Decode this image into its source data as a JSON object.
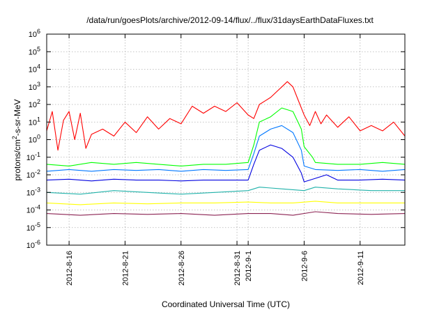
{
  "chart_data": {
    "type": "line",
    "title": "/data/run/goesPlots/archive/2012-09-14/flux/../flux/31daysEarthDataFluxes.txt",
    "xlabel": "Coordinated Universal Time (UTC)",
    "ylabel": {
      "prefix": "protons/cm",
      "superscript": "2",
      "suffix": "-s-sr-MeV"
    },
    "y_scale": "log",
    "ylim_exp": [
      -6,
      6
    ],
    "y_ticks": [
      {
        "base": "10",
        "exp": "-6"
      },
      {
        "base": "10",
        "exp": "-5"
      },
      {
        "base": "10",
        "exp": "-4"
      },
      {
        "base": "10",
        "exp": "-3"
      },
      {
        "base": "10",
        "exp": "-2"
      },
      {
        "base": "10",
        "exp": "-1"
      },
      {
        "base": "10",
        "exp": "0"
      },
      {
        "base": "10",
        "exp": "1"
      },
      {
        "base": "10",
        "exp": "2"
      },
      {
        "base": "10",
        "exp": "3"
      },
      {
        "base": "10",
        "exp": "4"
      },
      {
        "base": "10",
        "exp": "5"
      },
      {
        "base": "10",
        "exp": "6"
      }
    ],
    "xlim": [
      "2012-08-14",
      "2012-09-15"
    ],
    "x_ticks": [
      "2012-8-16",
      "2012-8-21",
      "2012-8-26",
      "2012-8-31",
      "2012-9-1",
      "2012-9-6",
      "2012-9-11"
    ],
    "grid": true,
    "series": [
      {
        "color": "#8b2252",
        "points": [
          [
            "2012-08-14",
            -4.2
          ],
          [
            "2012-08-17",
            -4.3
          ],
          [
            "2012-08-20",
            -4.2
          ],
          [
            "2012-08-23",
            -4.25
          ],
          [
            "2012-08-26",
            -4.2
          ],
          [
            "2012-08-29",
            -4.3
          ],
          [
            "2012-09-01",
            -4.2
          ],
          [
            "2012-09-03",
            -4.2
          ],
          [
            "2012-09-05",
            -4.3
          ],
          [
            "2012-09-07",
            -4.1
          ],
          [
            "2012-09-09",
            -4.2
          ],
          [
            "2012-09-12",
            -4.25
          ],
          [
            "2012-09-15",
            -4.2
          ]
        ]
      },
      {
        "color": "#ffff00",
        "points": [
          [
            "2012-08-14",
            -3.6
          ],
          [
            "2012-08-17",
            -3.7
          ],
          [
            "2012-08-20",
            -3.6
          ],
          [
            "2012-08-23",
            -3.65
          ],
          [
            "2012-08-26",
            -3.6
          ],
          [
            "2012-08-29",
            -3.6
          ],
          [
            "2012-09-01",
            -3.55
          ],
          [
            "2012-09-03",
            -3.6
          ],
          [
            "2012-09-05",
            -3.6
          ],
          [
            "2012-09-07",
            -3.5
          ],
          [
            "2012-09-09",
            -3.6
          ],
          [
            "2012-09-12",
            -3.6
          ],
          [
            "2012-09-15",
            -3.6
          ]
        ]
      },
      {
        "color": "#20b2aa",
        "points": [
          [
            "2012-08-14",
            -3.0
          ],
          [
            "2012-08-17",
            -3.1
          ],
          [
            "2012-08-20",
            -2.9
          ],
          [
            "2012-08-23",
            -3.0
          ],
          [
            "2012-08-26",
            -3.1
          ],
          [
            "2012-08-29",
            -3.0
          ],
          [
            "2012-09-01",
            -2.9
          ],
          [
            "2012-09-02",
            -2.7
          ],
          [
            "2012-09-04",
            -2.8
          ],
          [
            "2012-09-06",
            -2.9
          ],
          [
            "2012-09-07",
            -2.7
          ],
          [
            "2012-09-09",
            -2.8
          ],
          [
            "2012-09-12",
            -2.9
          ],
          [
            "2012-09-15",
            -2.9
          ]
        ]
      },
      {
        "color": "#00ff00",
        "points": [
          [
            "2012-08-14",
            -1.4
          ],
          [
            "2012-08-16",
            -1.5
          ],
          [
            "2012-08-18",
            -1.3
          ],
          [
            "2012-08-20",
            -1.4
          ],
          [
            "2012-08-22",
            -1.3
          ],
          [
            "2012-08-24",
            -1.4
          ],
          [
            "2012-08-26",
            -1.5
          ],
          [
            "2012-08-28",
            -1.4
          ],
          [
            "2012-08-30",
            -1.4
          ],
          [
            "2012-09-01",
            -1.3
          ],
          [
            "2012-09-01T12:00",
            -0.3
          ],
          [
            "2012-09-02",
            1.0
          ],
          [
            "2012-09-03",
            1.3
          ],
          [
            "2012-09-04",
            1.8
          ],
          [
            "2012-09-05",
            1.6
          ],
          [
            "2012-09-05T18:00",
            0.6
          ],
          [
            "2012-09-06",
            -0.4
          ],
          [
            "2012-09-06T18:00",
            -1.0
          ],
          [
            "2012-09-07",
            -1.3
          ],
          [
            "2012-09-09",
            -1.4
          ],
          [
            "2012-09-11",
            -1.4
          ],
          [
            "2012-09-13",
            -1.3
          ],
          [
            "2012-09-15",
            -1.4
          ]
        ]
      },
      {
        "color": "#0077ff",
        "points": [
          [
            "2012-08-14",
            -1.8
          ],
          [
            "2012-08-16",
            -1.7
          ],
          [
            "2012-08-18",
            -1.8
          ],
          [
            "2012-08-20",
            -1.7
          ],
          [
            "2012-08-22",
            -1.75
          ],
          [
            "2012-08-24",
            -1.7
          ],
          [
            "2012-08-26",
            -1.8
          ],
          [
            "2012-08-28",
            -1.7
          ],
          [
            "2012-08-30",
            -1.75
          ],
          [
            "2012-09-01",
            -1.7
          ],
          [
            "2012-09-01T12:00",
            -0.8
          ],
          [
            "2012-09-02",
            0.2
          ],
          [
            "2012-09-03",
            0.6
          ],
          [
            "2012-09-04",
            0.8
          ],
          [
            "2012-09-05",
            0.4
          ],
          [
            "2012-09-05T18:00",
            -0.6
          ],
          [
            "2012-09-06",
            -1.5
          ],
          [
            "2012-09-07",
            -1.7
          ],
          [
            "2012-09-09",
            -1.75
          ],
          [
            "2012-09-11",
            -1.7
          ],
          [
            "2012-09-13",
            -1.8
          ],
          [
            "2012-09-15",
            -1.7
          ]
        ]
      },
      {
        "color": "#0000e0",
        "points": [
          [
            "2012-08-14",
            -2.3
          ],
          [
            "2012-08-16",
            -2.25
          ],
          [
            "2012-08-18",
            -2.35
          ],
          [
            "2012-08-20",
            -2.25
          ],
          [
            "2012-08-22",
            -2.3
          ],
          [
            "2012-08-24",
            -2.3
          ],
          [
            "2012-08-26",
            -2.35
          ],
          [
            "2012-08-28",
            -2.3
          ],
          [
            "2012-08-30",
            -2.3
          ],
          [
            "2012-09-01",
            -2.3
          ],
          [
            "2012-09-01T12:00",
            -1.4
          ],
          [
            "2012-09-02",
            -0.6
          ],
          [
            "2012-09-03",
            -0.3
          ],
          [
            "2012-09-04",
            -0.5
          ],
          [
            "2012-09-05",
            -1.0
          ],
          [
            "2012-09-05T18:00",
            -1.9
          ],
          [
            "2012-09-06",
            -2.4
          ],
          [
            "2012-09-07",
            -2.2
          ],
          [
            "2012-09-08",
            -2.0
          ],
          [
            "2012-09-09",
            -2.3
          ],
          [
            "2012-09-11",
            -2.3
          ],
          [
            "2012-09-13",
            -2.25
          ],
          [
            "2012-09-15",
            -2.3
          ]
        ]
      },
      {
        "color": "#ff0000",
        "points": [
          [
            "2012-08-14",
            0.5
          ],
          [
            "2012-08-14T12:00",
            1.6
          ],
          [
            "2012-08-15",
            -0.6
          ],
          [
            "2012-08-15T12:00",
            1.1
          ],
          [
            "2012-08-16",
            1.6
          ],
          [
            "2012-08-16T12:00",
            0.0
          ],
          [
            "2012-08-17",
            1.5
          ],
          [
            "2012-08-17T12:00",
            -0.5
          ],
          [
            "2012-08-18",
            0.3
          ],
          [
            "2012-08-19",
            0.6
          ],
          [
            "2012-08-20",
            0.2
          ],
          [
            "2012-08-21",
            1.0
          ],
          [
            "2012-08-22",
            0.4
          ],
          [
            "2012-08-23",
            1.3
          ],
          [
            "2012-08-24",
            0.6
          ],
          [
            "2012-08-25",
            1.2
          ],
          [
            "2012-08-26",
            0.9
          ],
          [
            "2012-08-27",
            1.9
          ],
          [
            "2012-08-28",
            1.5
          ],
          [
            "2012-08-29",
            1.9
          ],
          [
            "2012-08-30",
            1.6
          ],
          [
            "2012-08-31",
            2.1
          ],
          [
            "2012-09-01",
            1.4
          ],
          [
            "2012-09-01T12:00",
            1.2
          ],
          [
            "2012-09-02",
            2.0
          ],
          [
            "2012-09-03",
            2.4
          ],
          [
            "2012-09-04",
            3.0
          ],
          [
            "2012-09-04T12:00",
            3.3
          ],
          [
            "2012-09-05",
            3.0
          ],
          [
            "2012-09-05T12:00",
            2.2
          ],
          [
            "2012-09-06",
            1.4
          ],
          [
            "2012-09-06T12:00",
            0.8
          ],
          [
            "2012-09-07",
            1.6
          ],
          [
            "2012-09-07T12:00",
            0.9
          ],
          [
            "2012-09-08",
            1.4
          ],
          [
            "2012-09-09",
            0.7
          ],
          [
            "2012-09-10",
            1.3
          ],
          [
            "2012-09-11",
            0.5
          ],
          [
            "2012-09-12",
            0.8
          ],
          [
            "2012-09-13",
            0.5
          ],
          [
            "2012-09-14",
            1.0
          ],
          [
            "2012-09-15",
            0.2
          ]
        ]
      }
    ]
  }
}
